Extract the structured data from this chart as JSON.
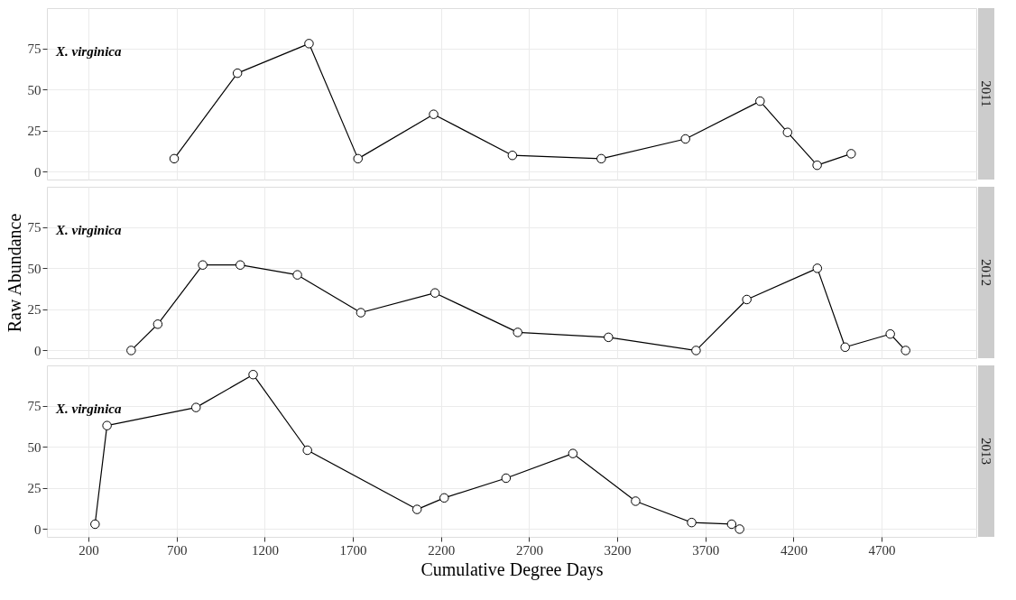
{
  "chart_data": [
    {
      "type": "line",
      "title": "2011",
      "annotations": [
        "X. virginica"
      ],
      "marker": "circle",
      "line_style": "solid",
      "grid": true,
      "tick_labels": "y",
      "x": [
        686,
        1045,
        1451,
        1729,
        2158,
        2605,
        3109,
        3587,
        4010,
        4166,
        4334,
        4527
      ],
      "series": [
        {
          "color": "#000000",
          "values": [
            8,
            60,
            78,
            8,
            35,
            10,
            8,
            20,
            43,
            24,
            4,
            11
          ]
        }
      ],
      "xlim": [
        -36,
        5237
      ],
      "xticks": [
        200,
        700,
        1200,
        1700,
        2200,
        2700,
        3200,
        3700,
        4200,
        4700
      ],
      "ylim": [
        -4.7,
        99.6
      ],
      "yticks": [
        0,
        25,
        50,
        75
      ]
    },
    {
      "type": "line",
      "title": "2012",
      "ylabel": "Raw Abundance",
      "annotations": [
        "X. virginica"
      ],
      "marker": "circle",
      "line_style": "solid",
      "grid": true,
      "tick_labels": "y",
      "x": [
        442,
        593,
        848,
        1061,
        1385,
        1745,
        2166,
        2635,
        3150,
        3647,
        3935,
        4335,
        4493,
        4749,
        4836
      ],
      "series": [
        {
          "color": "#000000",
          "values": [
            0,
            16,
            52,
            52,
            46,
            23,
            35,
            11,
            8,
            0,
            31,
            50,
            2,
            10,
            0
          ]
        }
      ],
      "xlim": [
        -36,
        5237
      ],
      "xticks": [
        200,
        700,
        1200,
        1700,
        2200,
        2700,
        3200,
        3700,
        4200,
        4700
      ],
      "ylim": [
        -4.7,
        99.6
      ],
      "yticks": [
        0,
        25,
        50,
        75
      ]
    },
    {
      "type": "line",
      "title": "2013",
      "xlabel": "Cumulative Degree Days",
      "annotations": [
        "X. virginica"
      ],
      "marker": "circle",
      "line_style": "solid",
      "grid": true,
      "x": [
        237,
        305,
        810,
        1134,
        1442,
        2064,
        2218,
        2569,
        2948,
        3304,
        3622,
        3849,
        3894
      ],
      "series": [
        {
          "color": "#000000",
          "values": [
            3,
            63,
            74,
            94,
            48,
            12,
            19,
            31,
            46,
            17,
            4,
            3,
            0
          ]
        }
      ],
      "xlim": [
        -36,
        5237
      ],
      "xticks": [
        200,
        700,
        1200,
        1700,
        2200,
        2700,
        3200,
        3700,
        4200,
        4700
      ],
      "ylim": [
        -4.7,
        99.6
      ],
      "yticks": [
        0,
        25,
        50,
        75
      ]
    }
  ]
}
